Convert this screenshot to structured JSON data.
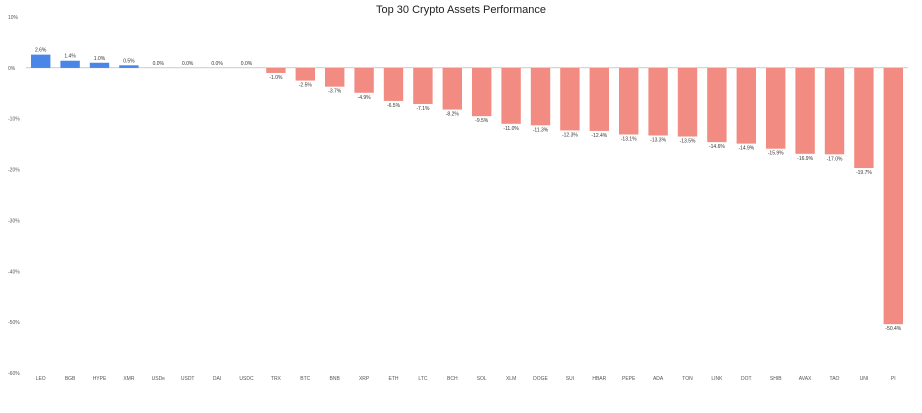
{
  "chart_data": {
    "type": "bar",
    "title": "Top 30 Crypto Assets Performance",
    "xlabel": "",
    "ylabel": "",
    "ylim": [
      -60,
      10
    ],
    "yticks": [
      10,
      0,
      -10,
      -20,
      -30,
      -40,
      -50,
      -60
    ],
    "ytick_labels": [
      "10%",
      "0%",
      "-10%",
      "-20%",
      "-30%",
      "-40%",
      "-50%",
      "-60%"
    ],
    "grid": false,
    "legend": "none",
    "categories": [
      "LEO",
      "BGB",
      "HYPE",
      "XMR",
      "USDe",
      "USDT",
      "DAI",
      "USDC",
      "TRX",
      "BTC",
      "BNB",
      "XRP",
      "ETH",
      "LTC",
      "BCH",
      "SOL",
      "XLM",
      "DOGE",
      "SUI",
      "HBAR",
      "PEPE",
      "ADA",
      "TON",
      "LINK",
      "DOT",
      "SHIB",
      "AVAX",
      "TAO",
      "UNI",
      "PI"
    ],
    "values": [
      2.6,
      1.4,
      1.0,
      0.5,
      0.0,
      0.0,
      0.0,
      0.0,
      -1.0,
      -2.5,
      -3.7,
      -4.9,
      -6.5,
      -7.1,
      -8.2,
      -9.5,
      -11.0,
      -11.3,
      -12.3,
      -12.4,
      -13.1,
      -13.3,
      -13.5,
      -14.6,
      -14.9,
      -15.9,
      -16.9,
      -17.0,
      -19.7,
      -50.4
    ],
    "data_labels": [
      "2.6%",
      "1.4%",
      "1.0%",
      "0.5%",
      "0.0%",
      "0.0%",
      "0.0%",
      "0.0%",
      "-1.0%",
      "-2.5%",
      "-3.7%",
      "-4.9%",
      "-6.5%",
      "-7.1%",
      "-8.2%",
      "-9.5%",
      "-11.0%",
      "-11.3%",
      "-12.3%",
      "-12.4%",
      "-13.1%",
      "-13.3%",
      "-13.5%",
      "-14.6%",
      "-14.9%",
      "-15.9%",
      "-16.9%",
      "-17.0%",
      "-19.7%",
      "-50.4%"
    ],
    "colors": {
      "positive": "#4a86e8",
      "negative": "#f28b82",
      "zero_line": "#999999"
    }
  }
}
